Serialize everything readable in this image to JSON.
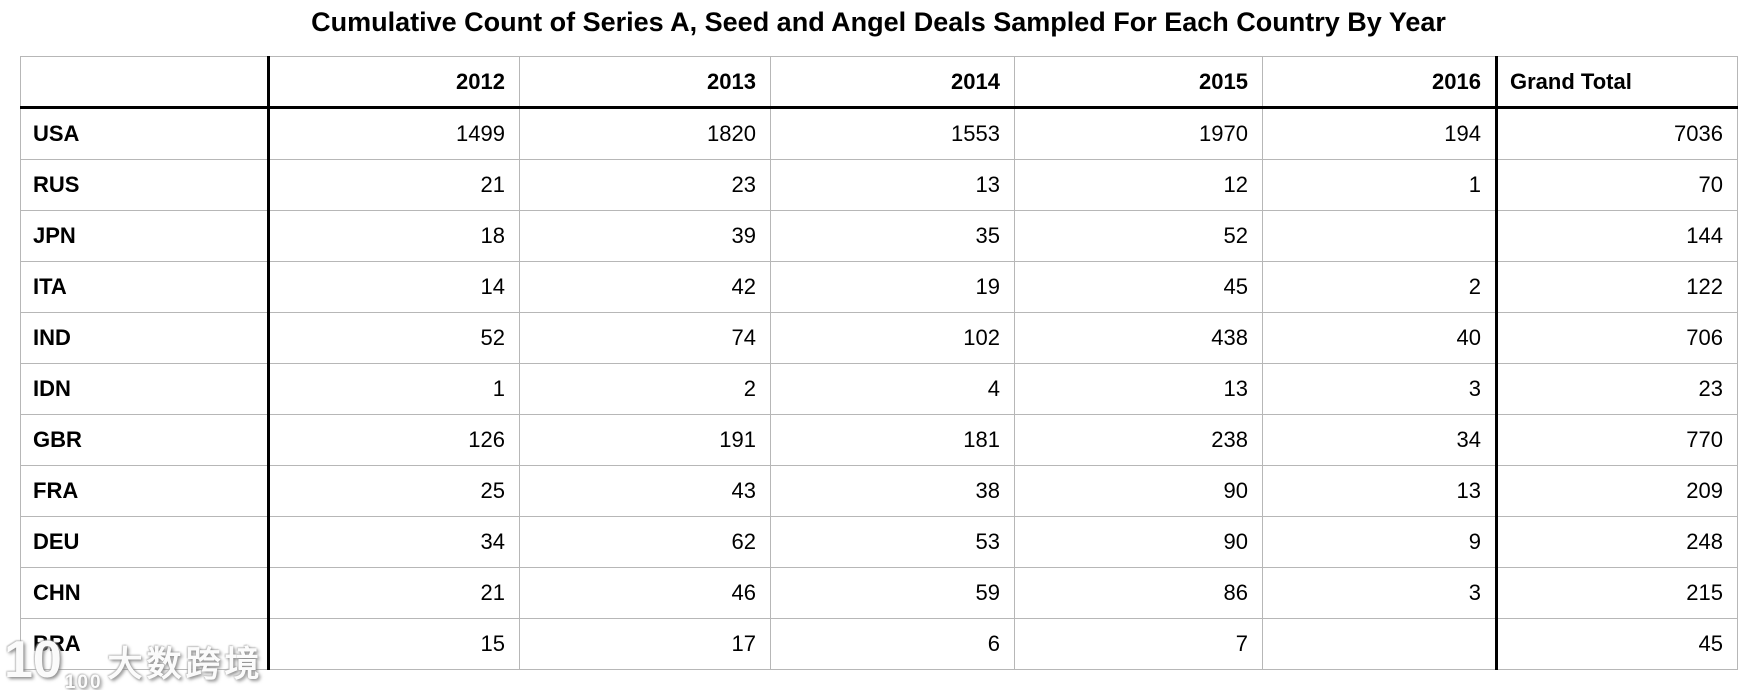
{
  "chart_data": {
    "type": "table",
    "title": "Cumulative Count of Series A, Seed and Angel Deals Sampled For Each Country By Year",
    "columns": [
      "",
      "2012",
      "2013",
      "2014",
      "2015",
      "2016",
      "Grand Total"
    ],
    "rows": [
      [
        "USA",
        1499,
        1820,
        1553,
        1970,
        194,
        7036
      ],
      [
        "RUS",
        21,
        23,
        13,
        12,
        1,
        70
      ],
      [
        "JPN",
        18,
        39,
        35,
        52,
        null,
        144
      ],
      [
        "ITA",
        14,
        42,
        19,
        45,
        2,
        122
      ],
      [
        "IND",
        52,
        74,
        102,
        438,
        40,
        706
      ],
      [
        "IDN",
        1,
        2,
        4,
        13,
        3,
        23
      ],
      [
        "GBR",
        126,
        191,
        181,
        238,
        34,
        770
      ],
      [
        "FRA",
        25,
        43,
        38,
        90,
        13,
        209
      ],
      [
        "DEU",
        34,
        62,
        53,
        90,
        9,
        248
      ],
      [
        "CHN",
        21,
        46,
        59,
        86,
        3,
        215
      ],
      [
        "BRA",
        15,
        17,
        6,
        7,
        null,
        45
      ]
    ],
    "layout": {
      "grid": true,
      "header_row_bottom_border": "thick-black",
      "thick_vertical_separators_after_columns": [
        0,
        5
      ],
      "year_header_align": "right",
      "grand_total_header_align": "left",
      "value_align": "right",
      "row_label_align": "left"
    }
  },
  "watermark": {
    "logo_base": "10",
    "logo_sup": "100",
    "text": "大数跨境"
  },
  "colors": {
    "background": "#ffffff",
    "text": "#000000",
    "grid_line": "#b7b7b7",
    "strong_line": "#000000",
    "watermark_fill": "#ffffff"
  }
}
